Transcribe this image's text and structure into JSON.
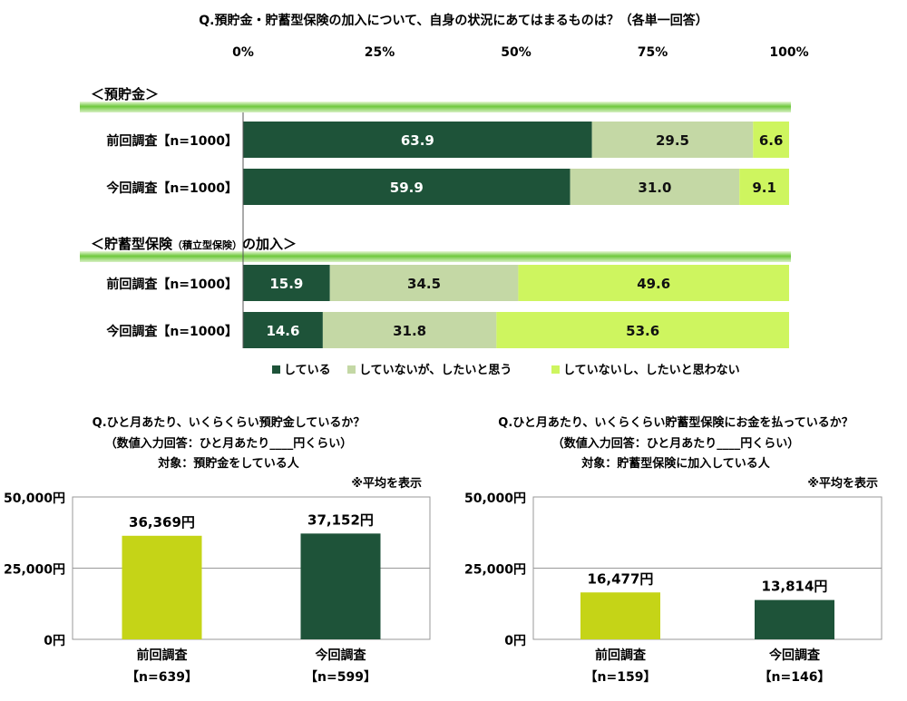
{
  "top": {
    "title": "Q.預貯金・貯蓄型保険の加入について、自身の状況にあてはまるものは？（各単一回答）",
    "ticks": [
      "0%",
      "25%",
      "50%",
      "75%",
      "100%"
    ],
    "sections": [
      {
        "label": "＜預貯金＞",
        "rows": [
          {
            "label": "前回調査【n=1000】",
            "values": [
              63.9,
              29.5,
              6.6
            ]
          },
          {
            "label": "今回調査【n=1000】",
            "values": [
              59.9,
              31.0,
              9.1
            ]
          }
        ]
      },
      {
        "label_main": "＜貯蓄型保険",
        "label_small": "（積立型保険）",
        "label_tail": "の加入＞",
        "rows": [
          {
            "label": "前回調査【n=1000】",
            "values": [
              15.9,
              34.5,
              49.6
            ]
          },
          {
            "label": "今回調査【n=1000】",
            "values": [
              14.6,
              31.8,
              53.6
            ]
          }
        ]
      }
    ],
    "legend": [
      "している",
      "していないが、したいと思う",
      "していないし、したいと思わない"
    ],
    "colors": [
      "#1e5339",
      "#c4d8a5",
      "#cef55f"
    ],
    "label_colors": [
      "#ffffff",
      "#111111",
      "#111111"
    ]
  },
  "bottom_left": {
    "title_lines": [
      "Q.ひと月あたり、いくらくらい預貯金しているか？",
      "（数値入力回答：ひと月あたり____円くらい）",
      "対象：預貯金をしている人"
    ],
    "note": "※平均を表示",
    "yticks": [
      "50,000円",
      "25,000円",
      "0円"
    ],
    "bars": [
      {
        "label": "前回調査",
        "n": "【n=639】",
        "value_label": "36,369円"
      },
      {
        "label": "今回調査",
        "n": "【n=599】",
        "value_label": "37,152円"
      }
    ]
  },
  "bottom_right": {
    "title_lines": [
      "Q.ひと月あたり、いくらくらい貯蓄型保険にお金を払っているか？",
      "（数値入力回答：ひと月あたり____円くらい）",
      "対象：貯蓄型保険に加入している人"
    ],
    "note": "※平均を表示",
    "yticks": [
      "50,000円",
      "25,000円",
      "0円"
    ],
    "bars": [
      {
        "label": "前回調査",
        "n": "【n=159】",
        "value_label": "16,477円"
      },
      {
        "label": "今回調査",
        "n": "【n=146】",
        "value_label": "13,814円"
      }
    ]
  },
  "chart_data": [
    {
      "type": "bar",
      "title": "Q.預貯金・貯蓄型保険の加入について、自身の状況にあてはまるものは？（各単一回答）",
      "orientation": "horizontal",
      "stacked": true,
      "xlim": [
        0,
        100
      ],
      "categories": [
        "＜預貯金＞ 前回調査【n=1000】",
        "＜預貯金＞ 今回調査【n=1000】",
        "＜貯蓄型保険（積立型保険）の加入＞ 前回調査【n=1000】",
        "＜貯蓄型保険（積立型保険）の加入＞ 今回調査【n=1000】"
      ],
      "series": [
        {
          "name": "している",
          "values": [
            63.9,
            59.9,
            15.9,
            14.6
          ]
        },
        {
          "name": "していないが、したいと思う",
          "values": [
            29.5,
            31.0,
            34.5,
            31.8
          ]
        },
        {
          "name": "していないし、したいと思わない",
          "values": [
            6.6,
            9.1,
            49.6,
            53.6
          ]
        }
      ],
      "legend": "bottom"
    },
    {
      "type": "bar",
      "title": "Q.ひと月あたり、いくらくらい預貯金しているか？",
      "categories": [
        "前回調査【n=639】",
        "今回調査【n=599】"
      ],
      "values": [
        36369,
        37152
      ],
      "ylim": [
        0,
        50000
      ],
      "grid": true
    },
    {
      "type": "bar",
      "title": "Q.ひと月あたり、いくらくらい貯蓄型保険にお金を払っているか？",
      "categories": [
        "前回調査【n=159】",
        "今回調査【n=146】"
      ],
      "values": [
        16477,
        13814
      ],
      "ylim": [
        0,
        50000
      ],
      "grid": true
    }
  ]
}
